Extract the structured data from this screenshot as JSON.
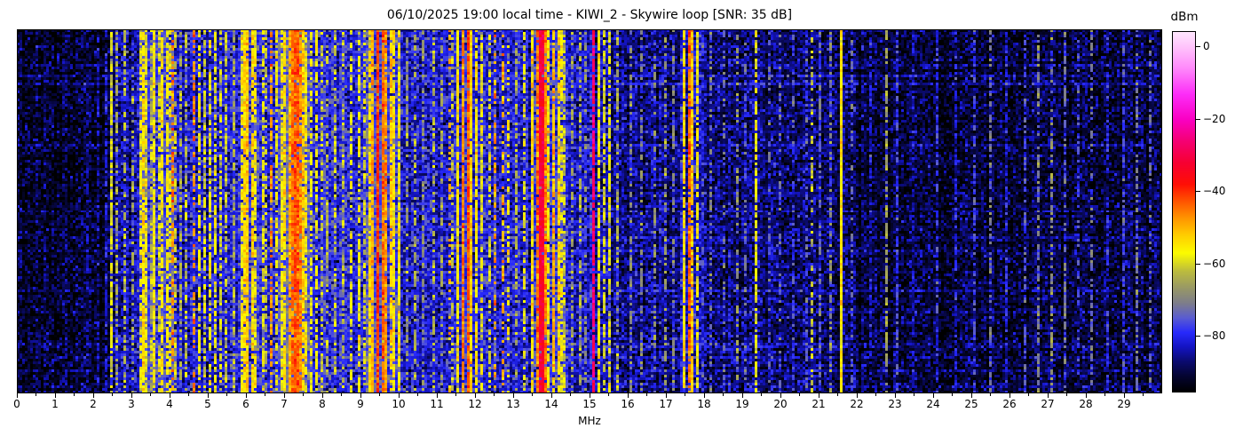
{
  "chart_data": {
    "type": "heatmap",
    "subtype": "radio-spectrum-waterfall",
    "title": "06/10/2025 19:00 local time - KIWI_2 - Skywire loop [SNR: 35 dB]",
    "xlabel": "MHz",
    "x_range": [
      0,
      30
    ],
    "x_major_ticks": [
      "0",
      "1",
      "2",
      "3",
      "4",
      "5",
      "6",
      "7",
      "8",
      "9",
      "10",
      "11",
      "12",
      "13",
      "14",
      "15",
      "16",
      "17",
      "18",
      "19",
      "20",
      "21",
      "22",
      "23",
      "24",
      "25",
      "26",
      "27",
      "28",
      "29"
    ],
    "x_minor_tick_step": 0.5,
    "y_axis": {
      "label": "",
      "ticks": []
    },
    "grid": false,
    "colorbar": {
      "label": "dBm",
      "tick_values": [
        0,
        -20,
        -40,
        -60,
        -80
      ],
      "tick_labels": [
        "0",
        "−20",
        "−40",
        "−60",
        "−80"
      ],
      "vmax": 4.4,
      "vmin": -95.5,
      "colormap": [
        [
          -95.5,
          0,
          0,
          0
        ],
        [
          -91,
          5,
          5,
          50
        ],
        [
          -87,
          11,
          11,
          112
        ],
        [
          -83,
          20,
          20,
          195
        ],
        [
          -79,
          40,
          42,
          252
        ],
        [
          -75,
          90,
          92,
          210
        ],
        [
          -71,
          125,
          125,
          140
        ],
        [
          -67,
          150,
          150,
          105
        ],
        [
          -62,
          188,
          188,
          62
        ],
        [
          -57,
          252,
          252,
          0
        ],
        [
          -52,
          255,
          205,
          0
        ],
        [
          -47,
          255,
          145,
          0
        ],
        [
          -42,
          255,
          75,
          0
        ],
        [
          -38,
          255,
          15,
          5
        ],
        [
          -32,
          247,
          0,
          50
        ],
        [
          -26,
          245,
          0,
          115
        ],
        [
          -20,
          250,
          0,
          195
        ],
        [
          -13,
          253,
          45,
          248
        ],
        [
          -6,
          255,
          135,
          251
        ],
        [
          0,
          255,
          195,
          252
        ],
        [
          4.4,
          255,
          232,
          255
        ]
      ]
    },
    "noise_floor_regions_format": "[f_start_MHz, f_end_MHz, floor_dBm]",
    "noise_floor_regions": [
      [
        0,
        2.45,
        -92
      ],
      [
        2.45,
        3.18,
        -84
      ],
      [
        3.18,
        4.15,
        -77
      ],
      [
        4.15,
        5.8,
        -82
      ],
      [
        5.8,
        6.35,
        -78
      ],
      [
        6.35,
        6.85,
        -80
      ],
      [
        6.85,
        7.65,
        -75
      ],
      [
        7.65,
        9.15,
        -80
      ],
      [
        9.15,
        10.05,
        -76
      ],
      [
        10.05,
        11.5,
        -82
      ],
      [
        11.5,
        12.25,
        -79
      ],
      [
        12.25,
        13.45,
        -82
      ],
      [
        13.45,
        14.4,
        -78
      ],
      [
        14.4,
        15.55,
        -83
      ],
      [
        15.55,
        17.4,
        -86
      ],
      [
        17.4,
        18.0,
        -83
      ],
      [
        18.0,
        19.5,
        -87
      ],
      [
        19.5,
        22.0,
        -88
      ],
      [
        22.0,
        30.0,
        -91
      ]
    ],
    "signal_bands_format": "[center_MHz, width_MHz, level_dBm, duty_cycle]",
    "signal_bands": [
      [
        0.75,
        0.03,
        -86,
        0.4
      ],
      [
        1.3,
        0.03,
        -87,
        0.35
      ],
      [
        1.85,
        0.03,
        -85,
        0.4
      ],
      [
        2.15,
        0.03,
        -83,
        0.45
      ],
      [
        2.32,
        0.03,
        -81,
        0.5
      ],
      [
        2.5,
        0.04,
        -60,
        0.8
      ],
      [
        2.62,
        0.03,
        -64,
        0.5
      ],
      [
        2.84,
        0.03,
        -63,
        0.5
      ],
      [
        3.02,
        0.03,
        -65,
        0.45
      ],
      [
        3.22,
        0.04,
        -58,
        0.7
      ],
      [
        3.31,
        0.04,
        -54,
        0.85
      ],
      [
        3.41,
        0.03,
        -58,
        0.7
      ],
      [
        3.51,
        0.03,
        -62,
        0.6
      ],
      [
        3.62,
        0.04,
        -56,
        0.8
      ],
      [
        3.72,
        0.03,
        -60,
        0.65
      ],
      [
        3.82,
        0.04,
        -55,
        0.8
      ],
      [
        3.92,
        0.04,
        -57,
        0.75
      ],
      [
        4.02,
        0.03,
        -59,
        0.65
      ],
      [
        4.07,
        0.03,
        -46,
        0.6
      ],
      [
        4.12,
        0.03,
        -62,
        0.5
      ],
      [
        4.3,
        0.03,
        -64,
        0.5
      ],
      [
        4.45,
        0.03,
        -62,
        0.5
      ],
      [
        4.63,
        0.03,
        -47,
        0.55
      ],
      [
        4.8,
        0.04,
        -56,
        0.7
      ],
      [
        4.95,
        0.03,
        -60,
        0.6
      ],
      [
        5.07,
        0.03,
        -57,
        0.65
      ],
      [
        5.2,
        0.04,
        -58,
        0.65
      ],
      [
        5.33,
        0.03,
        -60,
        0.6
      ],
      [
        5.5,
        0.03,
        -61,
        0.55
      ],
      [
        5.68,
        0.03,
        -63,
        0.5
      ],
      [
        5.87,
        0.04,
        -56,
        0.8
      ],
      [
        5.96,
        0.05,
        -53,
        0.85
      ],
      [
        6.06,
        0.05,
        -52,
        0.9
      ],
      [
        6.16,
        0.04,
        -54,
        0.85
      ],
      [
        6.25,
        0.04,
        -57,
        0.75
      ],
      [
        6.45,
        0.03,
        -58,
        0.6
      ],
      [
        6.55,
        0.03,
        -62,
        0.5
      ],
      [
        6.65,
        0.03,
        -47,
        0.6
      ],
      [
        6.78,
        0.03,
        -58,
        0.6
      ],
      [
        6.92,
        0.04,
        -57,
        0.75
      ],
      [
        7.02,
        0.05,
        -54,
        0.8
      ],
      [
        7.12,
        0.05,
        -49,
        0.9
      ],
      [
        7.21,
        0.1,
        -45,
        0.95
      ],
      [
        7.31,
        0.12,
        -43,
        0.97
      ],
      [
        7.41,
        0.05,
        -47,
        0.9
      ],
      [
        7.5,
        0.04,
        -52,
        0.85
      ],
      [
        7.6,
        0.03,
        -56,
        0.7
      ],
      [
        7.72,
        0.03,
        -58,
        0.6
      ],
      [
        7.85,
        0.04,
        -57,
        0.65
      ],
      [
        8.0,
        0.03,
        -60,
        0.55
      ],
      [
        8.15,
        0.03,
        -63,
        0.45
      ],
      [
        8.35,
        0.03,
        -60,
        0.5
      ],
      [
        8.55,
        0.03,
        -62,
        0.45
      ],
      [
        8.75,
        0.04,
        -58,
        0.6
      ],
      [
        8.95,
        0.04,
        -57,
        0.6
      ],
      [
        9.08,
        0.03,
        -59,
        0.55
      ],
      [
        9.22,
        0.04,
        -54,
        0.85
      ],
      [
        9.32,
        0.05,
        -50,
        0.9
      ],
      [
        9.45,
        0.1,
        -41,
        0.97
      ],
      [
        9.58,
        0.08,
        -44,
        0.95
      ],
      [
        9.68,
        0.05,
        -48,
        0.9
      ],
      [
        9.78,
        0.05,
        -52,
        0.85
      ],
      [
        9.88,
        0.04,
        -55,
        0.8
      ],
      [
        10.0,
        0.03,
        -55,
        0.8
      ],
      [
        10.25,
        0.03,
        -66,
        0.5
      ],
      [
        10.45,
        0.03,
        -64,
        0.5
      ],
      [
        10.65,
        0.03,
        -67,
        0.4
      ],
      [
        10.9,
        0.03,
        -63,
        0.5
      ],
      [
        11.15,
        0.03,
        -65,
        0.45
      ],
      [
        11.32,
        0.03,
        -50,
        0.3
      ],
      [
        11.42,
        0.03,
        -62,
        0.5
      ],
      [
        11.58,
        0.04,
        -55,
        0.85
      ],
      [
        11.7,
        0.05,
        -46,
        0.95
      ],
      [
        11.82,
        0.07,
        -43,
        0.95
      ],
      [
        11.92,
        0.04,
        -52,
        0.9
      ],
      [
        12.05,
        0.04,
        -55,
        0.8
      ],
      [
        12.17,
        0.03,
        -58,
        0.7
      ],
      [
        12.35,
        0.03,
        -60,
        0.5
      ],
      [
        12.55,
        0.03,
        -48,
        0.35
      ],
      [
        12.75,
        0.03,
        -50,
        0.45
      ],
      [
        12.85,
        0.03,
        -55,
        0.4
      ],
      [
        13.05,
        0.03,
        -64,
        0.5
      ],
      [
        13.3,
        0.03,
        -58,
        0.6
      ],
      [
        13.52,
        0.04,
        -54,
        0.85
      ],
      [
        13.62,
        0.04,
        -45,
        0.9
      ],
      [
        13.72,
        0.12,
        -32,
        0.98
      ],
      [
        13.84,
        0.04,
        -46,
        0.9
      ],
      [
        13.95,
        0.04,
        -55,
        0.8
      ],
      [
        14.08,
        0.04,
        -50,
        0.85
      ],
      [
        14.18,
        0.04,
        -53,
        0.85
      ],
      [
        14.27,
        0.03,
        -57,
        0.7
      ],
      [
        14.36,
        0.03,
        -60,
        0.6
      ],
      [
        14.55,
        0.03,
        -66,
        0.45
      ],
      [
        14.75,
        0.03,
        -64,
        0.5
      ],
      [
        14.9,
        0.03,
        -67,
        0.4
      ],
      [
        15.1,
        0.05,
        -27,
        0.9
      ],
      [
        15.22,
        0.03,
        -56,
        0.85
      ],
      [
        15.4,
        0.03,
        -60,
        0.6
      ],
      [
        15.55,
        0.03,
        -58,
        0.7
      ],
      [
        15.75,
        0.03,
        -64,
        0.5
      ],
      [
        16.05,
        0.02,
        -68,
        0.4
      ],
      [
        16.35,
        0.02,
        -70,
        0.4
      ],
      [
        16.7,
        0.02,
        -68,
        0.4
      ],
      [
        17.0,
        0.03,
        -66,
        0.45
      ],
      [
        17.2,
        0.02,
        -70,
        0.4
      ],
      [
        17.5,
        0.04,
        -54,
        0.85
      ],
      [
        17.6,
        0.04,
        -44,
        0.9
      ],
      [
        17.72,
        0.04,
        -52,
        0.85
      ],
      [
        17.85,
        0.03,
        -58,
        0.7
      ],
      [
        18.15,
        0.02,
        -70,
        0.4
      ],
      [
        18.5,
        0.02,
        -72,
        0.35
      ],
      [
        18.85,
        0.02,
        -68,
        0.4
      ],
      [
        19.1,
        0.02,
        -72,
        0.35
      ],
      [
        19.35,
        0.03,
        -58,
        0.8
      ],
      [
        19.7,
        0.02,
        -74,
        0.35
      ],
      [
        20.0,
        0.02,
        -72,
        0.4
      ],
      [
        20.35,
        0.02,
        -76,
        0.3
      ],
      [
        20.7,
        0.02,
        -74,
        0.35
      ],
      [
        20.85,
        0.03,
        -62,
        0.5
      ],
      [
        21.05,
        0.02,
        -72,
        0.4
      ],
      [
        21.3,
        0.03,
        -68,
        0.45
      ],
      [
        21.6,
        0.04,
        -55,
        1.0
      ],
      [
        21.85,
        0.02,
        -74,
        0.4
      ],
      [
        22.35,
        0.02,
        -80,
        0.4
      ],
      [
        22.8,
        0.02,
        -66,
        0.6
      ],
      [
        23.05,
        0.02,
        -76,
        0.5
      ],
      [
        23.5,
        0.02,
        -82,
        0.4
      ],
      [
        24.1,
        0.02,
        -78,
        0.45
      ],
      [
        24.6,
        0.02,
        -80,
        0.4
      ],
      [
        25.05,
        0.02,
        -76,
        0.5
      ],
      [
        25.5,
        0.02,
        -72,
        0.55
      ],
      [
        25.9,
        0.02,
        -80,
        0.4
      ],
      [
        26.4,
        0.02,
        -76,
        0.5
      ],
      [
        26.75,
        0.02,
        -70,
        0.55
      ],
      [
        27.1,
        0.03,
        -68,
        0.5
      ],
      [
        27.45,
        0.02,
        -72,
        0.5
      ],
      [
        27.8,
        0.02,
        -76,
        0.45
      ],
      [
        28.15,
        0.02,
        -72,
        0.5
      ],
      [
        28.6,
        0.02,
        -78,
        0.4
      ],
      [
        29.0,
        0.02,
        -76,
        0.45
      ],
      [
        29.35,
        0.02,
        -72,
        0.5
      ],
      [
        29.7,
        0.02,
        -74,
        0.45
      ]
    ]
  }
}
